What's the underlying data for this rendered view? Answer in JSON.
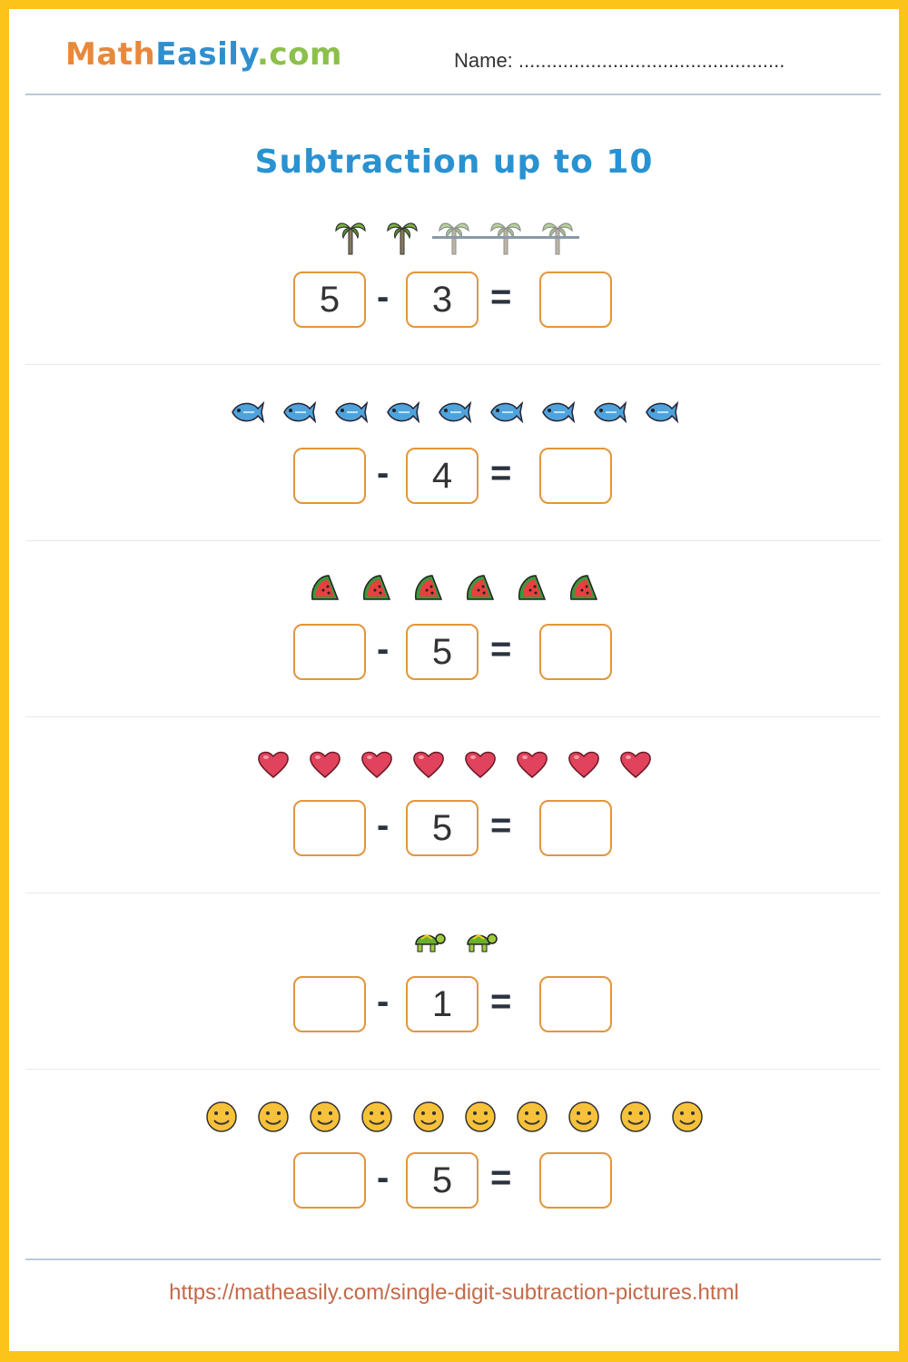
{
  "header": {
    "logo": {
      "part1": "Math",
      "part2": "Easily",
      "part3": ".com"
    },
    "name_label": "Name: ................................................"
  },
  "title": "Subtraction up to 10",
  "colors": {
    "border": "#fcc419",
    "box": "#e4953a",
    "title": "#2a92d0"
  },
  "problems": [
    {
      "icon": "palm-tree-icon",
      "count": 5,
      "crossed": 3,
      "minuend": "5",
      "subtrahend": "3",
      "answer": ""
    },
    {
      "icon": "fish-icon",
      "count": 9,
      "crossed": 0,
      "minuend": "",
      "subtrahend": "4",
      "answer": ""
    },
    {
      "icon": "watermelon-icon",
      "count": 6,
      "crossed": 0,
      "minuend": "",
      "subtrahend": "5",
      "answer": ""
    },
    {
      "icon": "heart-icon",
      "count": 8,
      "crossed": 0,
      "minuend": "",
      "subtrahend": "5",
      "answer": ""
    },
    {
      "icon": "turtle-icon",
      "count": 2,
      "crossed": 0,
      "minuend": "",
      "subtrahend": "1",
      "answer": ""
    },
    {
      "icon": "smiley-icon",
      "count": 10,
      "crossed": 0,
      "minuend": "",
      "subtrahend": "5",
      "answer": ""
    }
  ],
  "operators": {
    "minus": "-",
    "equals": "="
  },
  "footer": {
    "url": "https://matheasily.com/single-digit-subtraction-pictures.html"
  }
}
